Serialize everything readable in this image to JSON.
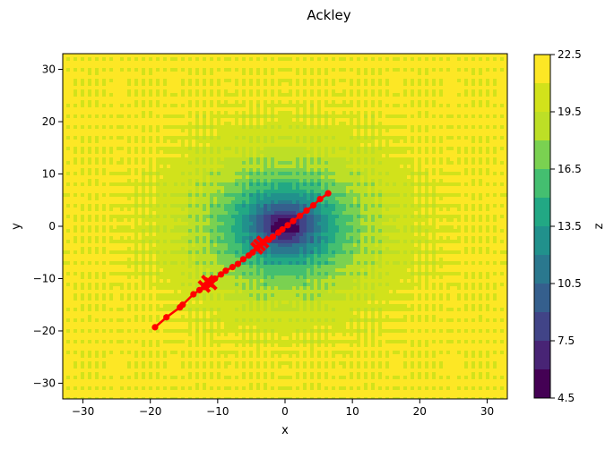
{
  "chart_data": {
    "type": "contour",
    "title": "Ackley",
    "xlabel": "x",
    "ylabel": "y",
    "xlim": [
      -33,
      33
    ],
    "ylim": [
      -33,
      33
    ],
    "x_ticks": [
      -30,
      -20,
      -10,
      0,
      10,
      20,
      30
    ],
    "y_ticks": [
      -30,
      -20,
      -10,
      0,
      10,
      20,
      30
    ],
    "colorbar": {
      "label": "z",
      "range": [
        4.5,
        22.5
      ],
      "levels": [
        4.5,
        6.0,
        7.5,
        9.0,
        10.5,
        12.0,
        13.5,
        15.0,
        16.5,
        18.0,
        19.5,
        21.0,
        22.5
      ],
      "tick_labels": [
        "4.5",
        "7.5",
        "10.5",
        "13.5",
        "16.5",
        "19.5",
        "22.5"
      ],
      "tick_values": [
        4.5,
        7.5,
        10.5,
        13.5,
        16.5,
        19.5,
        22.5
      ],
      "colors": [
        "#440154",
        "#482475",
        "#414487",
        "#355f8d",
        "#2a788e",
        "#21918c",
        "#22a884",
        "#44bf70",
        "#7ad151",
        "#bddf26",
        "#d2e21b",
        "#fde725"
      ]
    },
    "surface": {
      "function": "ackley",
      "a": 20,
      "b": 0.2,
      "c": 6.283185307
    },
    "path": {
      "color": "#ff0000",
      "points": [
        [
          -19.3,
          -19.3
        ],
        [
          -17.6,
          -17.4
        ],
        [
          -15.6,
          -15.5
        ],
        [
          -15.2,
          -15.0
        ],
        [
          -13.6,
          -13.0
        ],
        [
          -12.7,
          -12.2
        ],
        [
          -12.0,
          -11.6
        ],
        [
          -11.4,
          -11.0
        ],
        [
          -11.0,
          -10.3
        ],
        [
          -10.4,
          -10.0
        ],
        [
          -9.5,
          -9.2
        ],
        [
          -8.8,
          -8.5
        ],
        [
          -7.8,
          -7.8
        ],
        [
          -7.0,
          -7.2
        ],
        [
          -6.2,
          -6.3
        ],
        [
          -5.4,
          -5.6
        ],
        [
          -4.8,
          -5.0
        ],
        [
          -4.2,
          -4.2
        ],
        [
          -3.7,
          -3.6
        ],
        [
          -3.2,
          -3.1
        ],
        [
          -2.4,
          -2.6
        ],
        [
          -1.8,
          -2.0
        ],
        [
          -1.0,
          -1.2
        ],
        [
          -0.4,
          -0.6
        ],
        [
          0.4,
          0.2
        ],
        [
          1.2,
          1.0
        ],
        [
          2.2,
          2.0
        ],
        [
          3.2,
          3.0
        ],
        [
          4.2,
          4.0
        ],
        [
          5.2,
          5.2
        ],
        [
          6.4,
          6.3
        ]
      ],
      "x_markers": [
        [
          -12.0,
          -11.5
        ],
        [
          -11.0,
          -11.0
        ],
        [
          -11.5,
          -10.5
        ],
        [
          -4.2,
          -4.2
        ],
        [
          -3.8,
          -3.6
        ],
        [
          -3.3,
          -3.0
        ]
      ]
    }
  }
}
